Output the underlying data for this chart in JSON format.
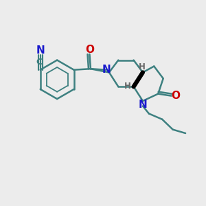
{
  "bg_color": "#ececec",
  "bond_color": "#3d8080",
  "N_color": "#1a1acc",
  "O_color": "#cc0000",
  "H_color": "#666666",
  "bond_width": 1.8,
  "fig_size": [
    3.0,
    3.0
  ],
  "dpi": 100,
  "xlim": [
    0,
    10
  ],
  "ylim": [
    0,
    10
  ]
}
